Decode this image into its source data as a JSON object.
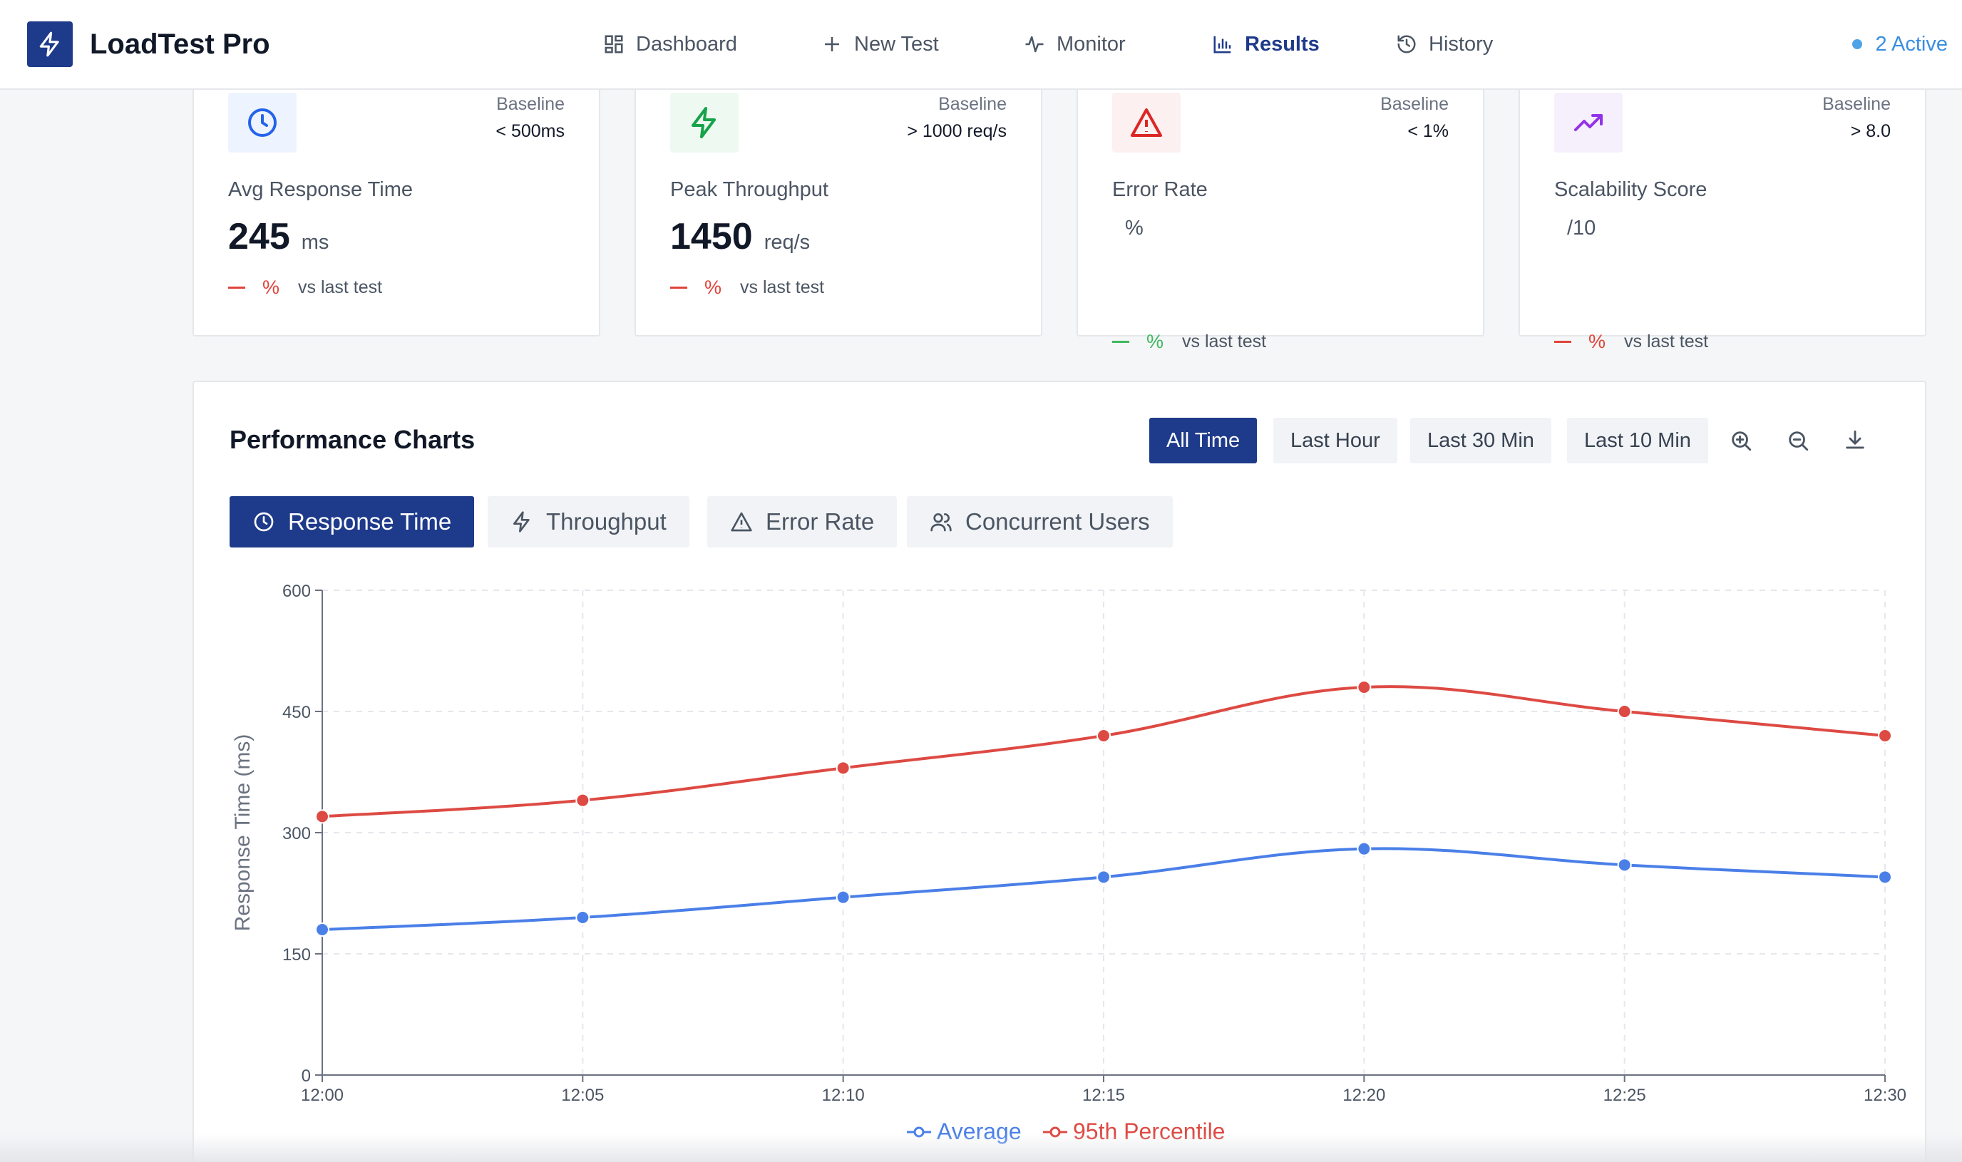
{
  "app": {
    "title": "LoadTest Pro"
  },
  "nav": {
    "items": [
      {
        "label": "Dashboard",
        "icon": "grid-icon"
      },
      {
        "label": "New Test",
        "icon": "plus-icon"
      },
      {
        "label": "Monitor",
        "icon": "activity-icon"
      },
      {
        "label": "Results",
        "icon": "bar-chart-icon",
        "active": true
      },
      {
        "label": "History",
        "icon": "history-icon"
      }
    ],
    "active_status": "2 Active"
  },
  "cards": [
    {
      "title": "Avg Response Time",
      "value": "245",
      "unit": "ms",
      "baseline_label": "Baseline",
      "baseline_value": "< 500ms",
      "trend_pct": "%",
      "trend_text": "vs last test",
      "icon": "clock-icon",
      "accent": "#2563eb"
    },
    {
      "title": "Peak Throughput",
      "value": "1450",
      "unit": "req/s",
      "baseline_label": "Baseline",
      "baseline_value": "> 1000 req/s",
      "trend_pct": "%",
      "trend_text": "vs last test",
      "icon": "zap-icon",
      "accent": "#16a34a"
    },
    {
      "title": "Error Rate",
      "value": "",
      "unit": "%",
      "baseline_label": "Baseline",
      "baseline_value": "< 1%",
      "trend_pct": "%",
      "trend_text": "vs last test",
      "icon": "alert-triangle-icon",
      "accent": "#dc2626"
    },
    {
      "title": "Scalability Score",
      "value": "",
      "unit": "/10",
      "baseline_label": "Baseline",
      "baseline_value": "> 8.0",
      "trend_pct": "%",
      "trend_text": "vs last test",
      "icon": "trending-up-icon",
      "accent": "#9333ea"
    }
  ],
  "panel": {
    "title": "Performance Charts",
    "ranges": [
      "All Time",
      "Last Hour",
      "Last 30 Min",
      "Last 10 Min"
    ],
    "active_range": "All Time",
    "tools": [
      "zoom-in-icon",
      "zoom-out-icon",
      "download-icon"
    ],
    "metric_tabs": [
      {
        "label": "Response Time",
        "icon": "clock-icon",
        "active": true
      },
      {
        "label": "Throughput",
        "icon": "zap-icon"
      },
      {
        "label": "Error Rate",
        "icon": "alert-triangle-icon"
      },
      {
        "label": "Concurrent Users",
        "icon": "users-icon"
      }
    ]
  },
  "colors": {
    "primary": "#1e3a8a",
    "average": "#4a7fe8",
    "p95": "#dd4a43",
    "trend_negative": "#e0443b",
    "trend_positive": "#3fb85f"
  },
  "chart_data": {
    "type": "line",
    "ylabel": "Response Time (ms)",
    "xlabel": "",
    "ylim": [
      0,
      600
    ],
    "yticks": [
      0,
      150,
      300,
      450,
      600
    ],
    "x": [
      "12:00",
      "12:05",
      "12:10",
      "12:15",
      "12:20",
      "12:25",
      "12:30"
    ],
    "series": [
      {
        "name": "Average",
        "values": [
          180,
          195,
          220,
          245,
          280,
          260,
          245
        ]
      },
      {
        "name": "95th Percentile",
        "values": [
          320,
          340,
          380,
          420,
          480,
          450,
          420
        ]
      }
    ],
    "grid": true,
    "legend": "bottom-center"
  }
}
